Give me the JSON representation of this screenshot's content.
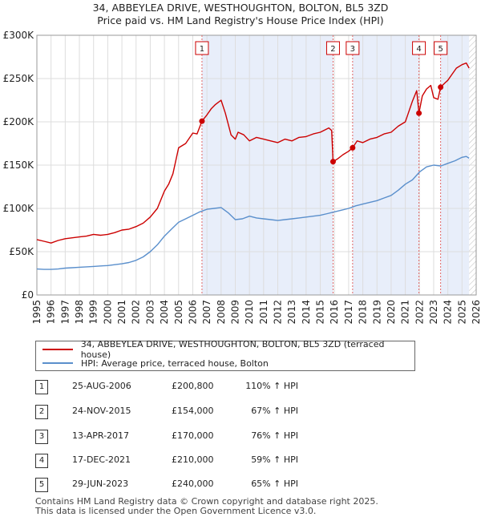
{
  "title_line1": "34, ABBEYLEA DRIVE, WESTHOUGHTON, BOLTON, BL5 3ZD",
  "title_line2": "Price paid vs. HM Land Registry's House Price Index (HPI)",
  "chart_data": {
    "type": "line",
    "xlim": [
      1995,
      2026
    ],
    "ylim": [
      0,
      300000
    ],
    "y_ticks": [
      0,
      50000,
      100000,
      150000,
      200000,
      250000,
      300000
    ],
    "y_tick_labels": [
      "£0",
      "£50K",
      "£100K",
      "£150K",
      "£200K",
      "£250K",
      "£300K"
    ],
    "x_ticks": [
      1995,
      1996,
      1997,
      1998,
      1999,
      2000,
      2001,
      2002,
      2003,
      2004,
      2005,
      2006,
      2007,
      2008,
      2009,
      2010,
      2011,
      2012,
      2013,
      2014,
      2015,
      2016,
      2017,
      2018,
      2019,
      2020,
      2021,
      2022,
      2023,
      2024,
      2025,
      2026
    ],
    "x_tick_labels": [
      "1995",
      "1996",
      "1997",
      "1998",
      "1999",
      "2000",
      "2001",
      "2002",
      "2003",
      "2004",
      "2005",
      "2006",
      "2007",
      "2008",
      "2009",
      "2010",
      "2011",
      "2012",
      "2013",
      "2014",
      "2015",
      "2016",
      "2017",
      "2018",
      "2019",
      "2020",
      "2021",
      "2022",
      "2023",
      "2024",
      "2025",
      "2026"
    ],
    "data_end_year": 2025.5,
    "series": [
      {
        "name": "34, ABBEYLEA DRIVE, WESTHOUGHTON, BOLTON, BL5 3ZD (terraced house)",
        "color": "#cc0000",
        "x": [
          1995.0,
          1995.5,
          1996.0,
          1996.5,
          1997.0,
          1997.5,
          1998.0,
          1998.5,
          1999.0,
          1999.5,
          2000.0,
          2000.5,
          2001.0,
          2001.5,
          2002.0,
          2002.5,
          2003.0,
          2003.5,
          2004.0,
          2004.3,
          2004.6,
          2005.0,
          2005.5,
          2006.0,
          2006.3,
          2006.65,
          2007.0,
          2007.3,
          2007.6,
          2008.0,
          2008.3,
          2008.7,
          2009.0,
          2009.2,
          2009.6,
          2010.0,
          2010.5,
          2011.0,
          2011.5,
          2012.0,
          2012.5,
          2013.0,
          2013.5,
          2014.0,
          2014.5,
          2015.0,
          2015.6,
          2015.8,
          2015.9,
          2016.2,
          2016.6,
          2017.0,
          2017.28,
          2017.6,
          2018.0,
          2018.5,
          2019.0,
          2019.5,
          2020.0,
          2020.5,
          2021.0,
          2021.5,
          2021.8,
          2021.96,
          2022.2,
          2022.5,
          2022.8,
          2023.0,
          2023.3,
          2023.49,
          2023.8,
          2024.0,
          2024.3,
          2024.6,
          2025.0,
          2025.3,
          2025.5
        ],
        "values": [
          64000,
          62000,
          60000,
          63000,
          65000,
          66000,
          67000,
          68000,
          70000,
          69000,
          70000,
          72000,
          75000,
          76000,
          79000,
          83000,
          90000,
          100000,
          120000,
          128000,
          140000,
          170000,
          175000,
          187000,
          186000,
          200800,
          208000,
          215000,
          220000,
          225000,
          210000,
          185000,
          180000,
          188000,
          185000,
          178000,
          182000,
          180000,
          178000,
          176000,
          180000,
          178000,
          182000,
          183000,
          186000,
          188000,
          193000,
          190000,
          154000,
          157000,
          162000,
          166000,
          170000,
          178000,
          176000,
          180000,
          182000,
          186000,
          188000,
          195000,
          200000,
          224000,
          236000,
          210000,
          230000,
          238000,
          242000,
          228000,
          226000,
          240000,
          245000,
          248000,
          255000,
          262000,
          266000,
          268000,
          262000
        ]
      },
      {
        "name": "HPI: Average price, terraced house, Bolton",
        "color": "#5a8fcc",
        "x": [
          1995.0,
          1995.5,
          1996.0,
          1996.5,
          1997.0,
          1997.5,
          1998.0,
          1998.5,
          1999.0,
          1999.5,
          2000.0,
          2000.5,
          2001.0,
          2001.5,
          2002.0,
          2002.5,
          2003.0,
          2003.5,
          2004.0,
          2004.5,
          2005.0,
          2005.5,
          2006.0,
          2006.5,
          2007.0,
          2007.5,
          2008.0,
          2008.5,
          2009.0,
          2009.5,
          2010.0,
          2010.5,
          2011.0,
          2011.5,
          2012.0,
          2012.5,
          2013.0,
          2013.5,
          2014.0,
          2014.5,
          2015.0,
          2015.5,
          2016.0,
          2016.5,
          2017.0,
          2017.5,
          2018.0,
          2018.5,
          2019.0,
          2019.5,
          2020.0,
          2020.5,
          2021.0,
          2021.5,
          2022.0,
          2022.5,
          2023.0,
          2023.5,
          2024.0,
          2024.5,
          2025.0,
          2025.3,
          2025.5
        ],
        "values": [
          30000,
          29500,
          29500,
          30000,
          31000,
          31500,
          32000,
          32500,
          33000,
          33500,
          34000,
          35000,
          36000,
          37500,
          40000,
          44000,
          50000,
          58000,
          68000,
          76000,
          84000,
          88000,
          92000,
          96000,
          99000,
          100000,
          101000,
          95000,
          87000,
          88000,
          91000,
          89000,
          88000,
          87000,
          86000,
          87000,
          88000,
          89000,
          90000,
          91000,
          92000,
          94000,
          96000,
          98000,
          100000,
          103000,
          105000,
          107000,
          109000,
          112000,
          115000,
          121000,
          128000,
          133000,
          142000,
          148000,
          150000,
          149000,
          152000,
          155000,
          159000,
          160000,
          158000
        ]
      }
    ],
    "sales": [
      {
        "label": "1",
        "x": 2006.65,
        "value": 200800
      },
      {
        "label": "2",
        "x": 2015.9,
        "value": 154000
      },
      {
        "label": "3",
        "x": 2017.28,
        "value": 170000
      },
      {
        "label": "4",
        "x": 2021.96,
        "value": 210000
      },
      {
        "label": "5",
        "x": 2023.49,
        "value": 240000
      }
    ],
    "shaded_spans": [
      [
        2006.65,
        2015.9
      ],
      [
        2017.28,
        2021.96
      ],
      [
        2023.49,
        2025.5
      ]
    ]
  },
  "legend": {
    "property": "34, ABBEYLEA DRIVE, WESTHOUGHTON, BOLTON, BL5 3ZD (terraced house)",
    "hpi": "HPI: Average price, terraced house, Bolton"
  },
  "transactions": [
    {
      "num": "1",
      "date": "25-AUG-2006",
      "price": "£200,800",
      "hpi": "110% ↑ HPI"
    },
    {
      "num": "2",
      "date": "24-NOV-2015",
      "price": "£154,000",
      "hpi": "67% ↑ HPI"
    },
    {
      "num": "3",
      "date": "13-APR-2017",
      "price": "£170,000",
      "hpi": "76% ↑ HPI"
    },
    {
      "num": "4",
      "date": "17-DEC-2021",
      "price": "£210,000",
      "hpi": "59% ↑ HPI"
    },
    {
      "num": "5",
      "date": "29-JUN-2023",
      "price": "£240,000",
      "hpi": "65% ↑ HPI"
    }
  ],
  "footer_line1": "Contains HM Land Registry data © Crown copyright and database right 2025.",
  "footer_line2": "This data is licensed under the Open Government Licence v3.0."
}
